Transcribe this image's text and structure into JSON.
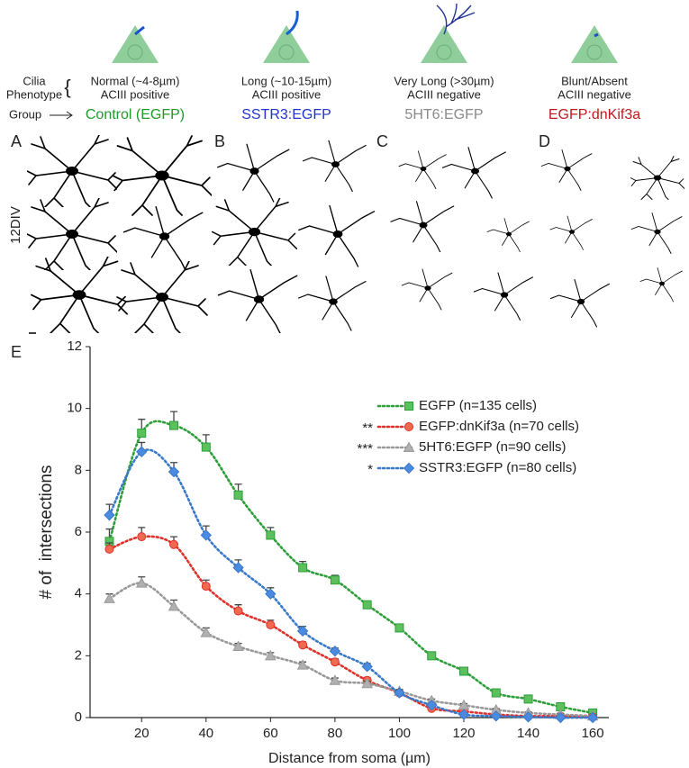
{
  "header": {
    "cilia_label": "Cilia",
    "phenotype_label": "Phenotype",
    "group_label": "Group",
    "div_label": "12DIV",
    "columns": [
      {
        "letter": "A",
        "phenotype": "Normal (~4-8µm)",
        "acIII": "ACIII positive",
        "group": "Control (EGFP)",
        "color": "#1f9a2a"
      },
      {
        "letter": "B",
        "phenotype": "Long (~10-15µm)",
        "acIII": "ACIII positive",
        "group": "SSTR3:EGFP",
        "color": "#2233cc"
      },
      {
        "letter": "C",
        "phenotype": "Very Long (>30µm)",
        "acIII": "ACIII negative",
        "group": "5HT6:EGFP",
        "color": "#8a8a8a"
      },
      {
        "letter": "D",
        "phenotype": "Blunt/Absent",
        "acIII": "ACIII negative",
        "group": "EGFP:dnKif3a",
        "color": "#c0181c"
      }
    ]
  },
  "chart_data": {
    "type": "line",
    "letter": "E",
    "x_label": "Distance from soma (µm)",
    "y_label": "# of  intersections",
    "x": [
      10,
      20,
      30,
      40,
      50,
      60,
      70,
      80,
      90,
      100,
      110,
      120,
      130,
      140,
      150,
      160
    ],
    "xlim": [
      4,
      165
    ],
    "ylim": [
      0,
      12
    ],
    "xticks": [
      20,
      40,
      60,
      80,
      100,
      120,
      140,
      160
    ],
    "yticks": [
      0,
      2,
      4,
      6,
      8,
      10,
      12
    ],
    "legend": "upper right",
    "series": [
      {
        "name": "EGFP (n=135 cells)",
        "color": "#2e9e3a",
        "fill": "#5cc05c",
        "marker": "square",
        "values": [
          5.7,
          9.2,
          9.45,
          8.75,
          7.2,
          5.9,
          4.85,
          4.45,
          3.65,
          2.9,
          2.0,
          1.5,
          0.8,
          0.6,
          0.35,
          0.15
        ],
        "errors": [
          0.4,
          0.45,
          0.45,
          0.4,
          0.35,
          0.25,
          0.2,
          0.15,
          0.1,
          0.1,
          0.1,
          0.1,
          0.08,
          0.08,
          0.05,
          0.05
        ]
      },
      {
        "name": "EGFP:dnKif3a (n=70 cells)",
        "significance": "**",
        "color": "#e0302a",
        "fill": "#f06a50",
        "marker": "circle",
        "values": [
          5.45,
          5.85,
          5.6,
          4.25,
          3.45,
          3.0,
          2.35,
          1.8,
          1.2,
          0.8,
          0.3,
          0.2,
          0.1,
          0.05,
          0.05,
          0.02
        ],
        "errors": [
          0.2,
          0.3,
          0.25,
          0.2,
          0.2,
          0.15,
          0.1,
          0.1,
          0.1,
          0.08,
          0.05,
          0.05,
          0.05,
          0.03,
          0.03,
          0.02
        ]
      },
      {
        "name": "5HT6:EGFP (n=90 cells)",
        "significance": "***",
        "color": "#999999",
        "fill": "#b0b0b0",
        "marker": "triangle",
        "values": [
          3.85,
          4.35,
          3.6,
          2.75,
          2.3,
          2.0,
          1.7,
          1.2,
          1.1,
          0.85,
          0.55,
          0.4,
          0.25,
          0.15,
          0.1,
          0.05
        ],
        "errors": [
          0.15,
          0.2,
          0.2,
          0.15,
          0.1,
          0.1,
          0.1,
          0.08,
          0.08,
          0.06,
          0.05,
          0.05,
          0.04,
          0.03,
          0.03,
          0.02
        ]
      },
      {
        "name": "SSTR3:EGFP (n=80 cells)",
        "significance": "*",
        "color": "#3a78c8",
        "fill": "#4a8ae0",
        "marker": "diamond",
        "values": [
          6.55,
          8.6,
          7.95,
          5.9,
          4.85,
          4.0,
          2.8,
          2.15,
          1.65,
          0.8,
          0.4,
          0.1,
          0.05,
          0.02,
          0.0,
          0.0
        ],
        "errors": [
          0.35,
          0.3,
          0.3,
          0.3,
          0.25,
          0.2,
          0.15,
          0.1,
          0.1,
          0.08,
          0.05,
          0.04,
          0.03,
          0.02,
          0.02,
          0.02
        ]
      }
    ]
  }
}
